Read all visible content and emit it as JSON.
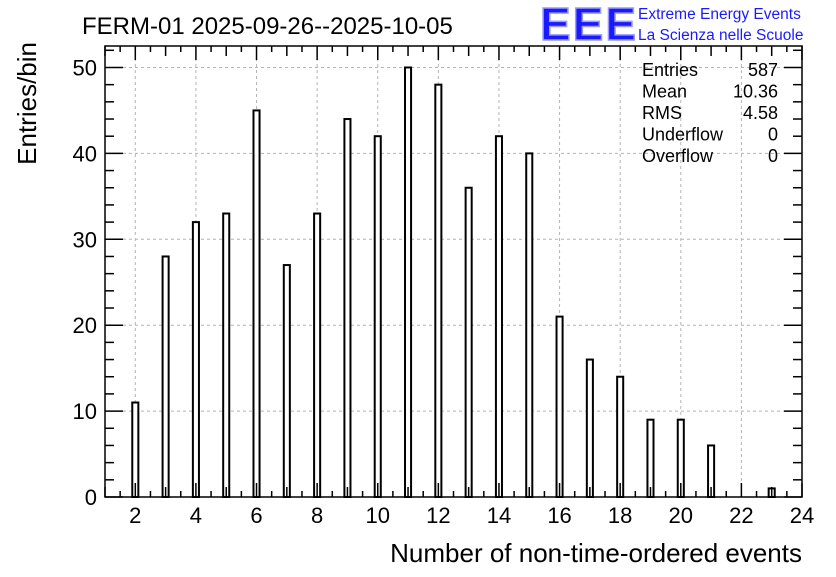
{
  "chart_data": {
    "type": "bar",
    "title": "FERM-01 2025-09-26--2025-10-05",
    "xlabel": "Number of non-time-ordered events",
    "ylabel": "Entries/bin",
    "xlim": [
      1,
      24
    ],
    "ylim": [
      0,
      52.5
    ],
    "grid": true,
    "x_ticks": [
      "2",
      "4",
      "6",
      "8",
      "10",
      "12",
      "14",
      "16",
      "18",
      "20",
      "22",
      "24"
    ],
    "y_ticks": [
      "0",
      "10",
      "20",
      "30",
      "40",
      "50"
    ],
    "x": [
      2,
      3,
      4,
      5,
      6,
      7,
      8,
      9,
      10,
      11,
      12,
      13,
      14,
      15,
      16,
      17,
      18,
      19,
      20,
      21,
      23
    ],
    "values": [
      11,
      28,
      32,
      33,
      45,
      27,
      33,
      44,
      42,
      50,
      48,
      36,
      42,
      40,
      21,
      16,
      14,
      9,
      9,
      6,
      1
    ],
    "stats": {
      "placement": "top-right",
      "rows": [
        {
          "label": "Entries",
          "value": "587"
        },
        {
          "label": "Mean",
          "value": "10.36"
        },
        {
          "label": "RMS",
          "value": "4.58"
        },
        {
          "label": "Underflow",
          "value": "0"
        },
        {
          "label": "Overflow",
          "value": "0"
        }
      ]
    }
  },
  "logo": {
    "mark": "EEE",
    "line1": "Extreme Energy Events",
    "line2": "La Scienza nelle Scuole",
    "color": "#1a1aff"
  }
}
